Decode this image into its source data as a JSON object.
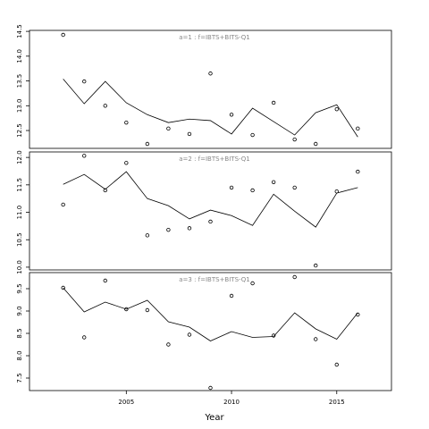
{
  "chart_data": [
    {
      "type": "line",
      "title": "a=1 : f=IBTS+BITS-Q1",
      "x": [
        2002,
        2003,
        2004,
        2005,
        2006,
        2007,
        2008,
        2009,
        2010,
        2011,
        2012,
        2013,
        2014,
        2015,
        2016
      ],
      "series": [
        {
          "color": "#000000",
          "marker": "circle",
          "values": [
            14.43,
            13.49,
            13.0,
            12.66,
            12.23,
            12.54,
            12.43,
            13.65,
            12.82,
            12.41,
            13.06,
            12.32,
            12.23,
            12.93,
            12.54
          ]
        },
        {
          "color": "#000000",
          "marker": "none",
          "values": [
            13.54,
            13.04,
            13.49,
            13.06,
            12.82,
            12.66,
            12.73,
            12.7,
            12.43,
            12.95,
            12.68,
            12.41,
            12.86,
            13.02,
            12.37
          ]
        }
      ],
      "xlim": [
        2000.4,
        2017.6
      ],
      "ylim": [
        12.14,
        14.52
      ],
      "yticks": [
        {
          "value": 12.5,
          "label": "12.5"
        },
        {
          "value": 13,
          "label": "13.0"
        },
        13.5,
        {
          "value": 14,
          "label": "14.0"
        },
        14.5
      ]
    },
    {
      "type": "line",
      "title": "a=2 : f=IBTS+BITS-Q1",
      "x": [
        2002,
        2003,
        2004,
        2005,
        2006,
        2007,
        2008,
        2009,
        2010,
        2011,
        2012,
        2013,
        2014,
        2015,
        2016
      ],
      "series": [
        {
          "color": "#000000",
          "marker": "circle",
          "values": [
            11.14,
            12.03,
            11.4,
            11.9,
            10.58,
            10.68,
            10.71,
            10.83,
            11.45,
            11.4,
            11.55,
            11.45,
            10.03,
            11.38,
            11.74
          ]
        },
        {
          "color": "#000000",
          "marker": "none",
          "values": [
            11.51,
            11.69,
            11.42,
            11.74,
            11.25,
            11.12,
            10.88,
            11.04,
            10.94,
            10.76,
            11.33,
            11.02,
            10.73,
            11.35,
            11.45
          ]
        }
      ],
      "xlim": [
        2000.4,
        2017.6
      ],
      "ylim": [
        9.95,
        12.1
      ],
      "yticks": [
        {
          "value": 10,
          "label": "10.0"
        },
        10.5,
        {
          "value": 11,
          "label": "11.0"
        },
        11.5,
        {
          "value": 12,
          "label": "12.0"
        }
      ]
    },
    {
      "type": "line",
      "title": "a=3 : f=IBTS+BITS-Q1",
      "x_label": "Year",
      "x": [
        2002,
        2003,
        2004,
        2005,
        2006,
        2007,
        2008,
        2009,
        2010,
        2011,
        2012,
        2013,
        2014,
        2015,
        2016
      ],
      "series": [
        {
          "color": "#000000",
          "marker": "circle",
          "values": [
            9.52,
            8.41,
            9.68,
            9.04,
            9.02,
            8.25,
            8.47,
            7.28,
            9.34,
            9.62,
            8.45,
            9.76,
            8.37,
            7.8,
            8.92
          ]
        },
        {
          "color": "#000000",
          "marker": "none",
          "values": [
            9.52,
            8.98,
            9.2,
            9.04,
            9.24,
            8.76,
            8.64,
            8.33,
            8.54,
            8.41,
            8.43,
            8.96,
            8.6,
            8.37,
            8.96
          ]
        }
      ],
      "xlim": [
        2000.4,
        2017.6
      ],
      "ylim": [
        7.22,
        9.86
      ],
      "xticks": [
        2005,
        2010,
        2015
      ],
      "yticks": [
        7.5,
        {
          "value": 8,
          "label": "8.0"
        },
        8.5,
        {
          "value": 9,
          "label": "9.0"
        },
        9.5
      ]
    }
  ]
}
